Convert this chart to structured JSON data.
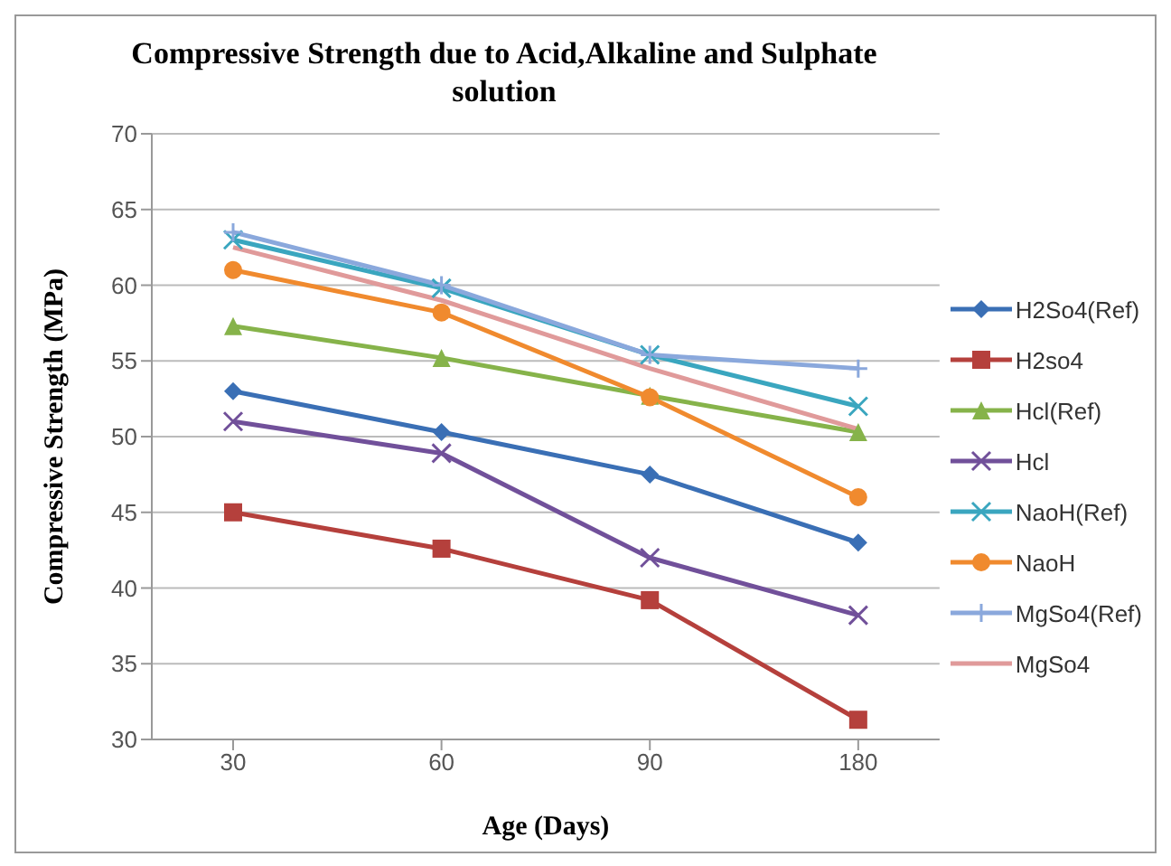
{
  "chart_data": {
    "type": "line",
    "title": "Compressive Strength due to Acid,Alkaline and Sulphate solution",
    "xlabel": "Age (Days)",
    "ylabel": "Compressive Strength (MPa)",
    "categories": [
      "30",
      "60",
      "90",
      "180"
    ],
    "ylim": [
      30,
      70
    ],
    "yticks": [
      30,
      35,
      40,
      45,
      50,
      55,
      60,
      65,
      70
    ],
    "grid": "y",
    "legend": "right",
    "series": [
      {
        "name": "H2So4(Ref)",
        "color": "#3a6fb5",
        "marker": "diamond",
        "values": [
          53,
          50.3,
          47.5,
          43
        ]
      },
      {
        "name": "H2so4",
        "color": "#b5403c",
        "marker": "square",
        "values": [
          45,
          42.6,
          39.2,
          31.3
        ]
      },
      {
        "name": "Hcl(Ref)",
        "color": "#86b34a",
        "marker": "triangle",
        "values": [
          57.3,
          55.2,
          52.7,
          50.3
        ]
      },
      {
        "name": "Hcl",
        "color": "#71509a",
        "marker": "cross",
        "values": [
          51,
          48.9,
          42,
          38.2
        ]
      },
      {
        "name": "NaoH(Ref)",
        "color": "#3aa6bf",
        "marker": "cross",
        "values": [
          63,
          59.8,
          55.4,
          52
        ]
      },
      {
        "name": "NaoH",
        "color": "#f08a2e",
        "marker": "circle",
        "values": [
          61,
          58.2,
          52.6,
          46
        ]
      },
      {
        "name": "MgSo4(Ref)",
        "color": "#8aa8dc",
        "marker": "plus",
        "values": [
          63.5,
          60,
          55.4,
          54.5
        ]
      },
      {
        "name": "MgSo4",
        "color": "#e09a9a",
        "marker": "none",
        "values": [
          62.5,
          59,
          54.5,
          50.5
        ]
      }
    ]
  }
}
